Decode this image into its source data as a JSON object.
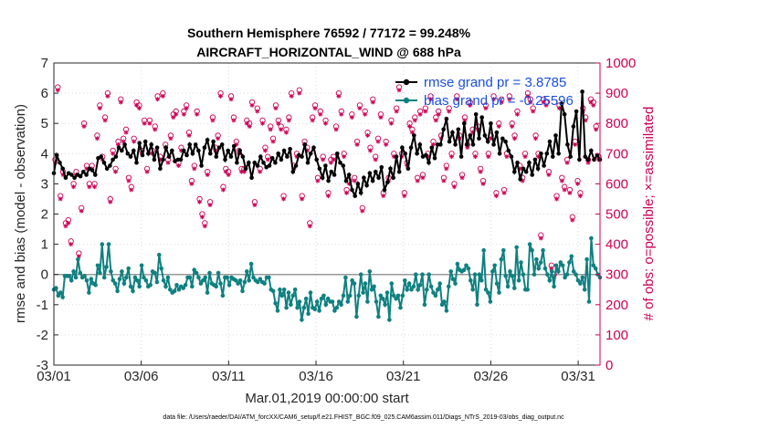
{
  "chart_data": {
    "type": "line",
    "title": "Southern Hemisphere 76592 / 77172 = 99.248%",
    "subtitle": "AIRCRAFT_HORIZONTAL_WIND @ 688 hPa",
    "xlabel": "Mar.01,2019 00:00:00 start",
    "ylabel": "rmse and bias (model - observation)",
    "y2label": "# of obs: o=possible; ×=assimilated",
    "footnote": "data file: /Users/raeder/DAI/ATM_forcXX/CAM6_setup/f.e21.FHIST_BGC.f09_025.CAM6assim.011/Diags_NTrS_2019-03/obs_diag_output.nc",
    "xlim": [
      0,
      31.25
    ],
    "ylim": [
      -3,
      7
    ],
    "y2lim": [
      0,
      1000
    ],
    "x_tick_labels": [
      "03/01",
      "03/06",
      "03/11",
      "03/16",
      "03/21",
      "03/26",
      "03/31"
    ],
    "x_tick_values": [
      0,
      5,
      10,
      15,
      20,
      25,
      30
    ],
    "y_ticks": [
      "-3",
      "-2",
      "-1",
      "0",
      "1",
      "2",
      "3",
      "4",
      "5",
      "6",
      "7"
    ],
    "y2_ticks": [
      "0",
      "100",
      "200",
      "300",
      "400",
      "500",
      "600",
      "700",
      "800",
      "900",
      "1000"
    ],
    "colors": {
      "rmse": "#000000",
      "bias": "#108080",
      "obs": "#cc0055",
      "legend_text": "#1a4fe0",
      "zero": "#999999"
    },
    "series": [
      {
        "name": "rmse",
        "legend_label": "rmse grand pr = 3.8785",
        "values": [
          3.35,
          3.95,
          3.7,
          3.5,
          3.2,
          3.35,
          3.3,
          3.2,
          3.3,
          3.25,
          3.4,
          3.3,
          3.5,
          3.45,
          3.3,
          3.85,
          3.9,
          3.7,
          3.5,
          3.6,
          3.8,
          3.9,
          4.2,
          4.1,
          4.3,
          4.0,
          3.9,
          4.1,
          3.7,
          4.35,
          3.95,
          4.4,
          4.0,
          4.3,
          3.8,
          4.2,
          3.5,
          3.8,
          4.2,
          3.9,
          4.1,
          3.75,
          3.8,
          3.8,
          4.1,
          3.95,
          4.3,
          4.0,
          4.3,
          4.1,
          3.6,
          4.2,
          4.45,
          4.0,
          4.4,
          3.9,
          4.2,
          4.3,
          3.8,
          4.1,
          3.9,
          4.25,
          3.7,
          4.1,
          3.9,
          3.5,
          3.7,
          3.2,
          3.7,
          3.6,
          3.9,
          3.7,
          3.55,
          3.6,
          3.85,
          3.7,
          4.0,
          3.8,
          4.1,
          3.9,
          4.15,
          3.4,
          3.6,
          3.95,
          3.9,
          4.3,
          3.7,
          4.0,
          4.2,
          3.8,
          3.5,
          3.2,
          3.6,
          3.1,
          3.4,
          3.3,
          4.0,
          3.7,
          3.6,
          3.1,
          3.3,
          2.8,
          2.6,
          3.0,
          2.7,
          3.2,
          2.95,
          3.35,
          3.1,
          3.4,
          3.2,
          3.55,
          2.8,
          3.05,
          3.5,
          3.2,
          3.9,
          3.4,
          4.2,
          4.0,
          3.5,
          4.2,
          4.6,
          4.0,
          4.3,
          3.9,
          3.95,
          3.7,
          4.2,
          3.85,
          4.3,
          4.3,
          4.8,
          5.15,
          4.4,
          4.7,
          4.3,
          4.8,
          3.9,
          5.0,
          4.3,
          4.6,
          4.3,
          5.3,
          4.5,
          5.2,
          4.6,
          4.4,
          5.0,
          4.3,
          4.7,
          4.0,
          4.5,
          4.4,
          4.1,
          3.9,
          3.4,
          3.7,
          3.15,
          3.5,
          3.4,
          3.7,
          3.3,
          3.8,
          3.5,
          4.0,
          3.6,
          4.0,
          4.4,
          3.9,
          4.6,
          4.0,
          5.65,
          5.3,
          4.3,
          3.9,
          4.9,
          5.4,
          3.8,
          6.05,
          3.9,
          3.8,
          4.1,
          3.8,
          3.95,
          3.8
        ]
      },
      {
        "name": "bias",
        "legend_label": "bias grand pr = -0.25596",
        "values": [
          -0.5,
          -0.45,
          -0.7,
          -0.6,
          -0.75,
          -0.05,
          -0.05,
          -0.05,
          -0.2,
          0.1,
          -0.1,
          0.5,
          0.05,
          -0.1,
          -0.05,
          -0.2,
          -0.6,
          -0.15,
          -0.3,
          -0.35,
          0.3,
          0.05,
          1.0,
          -0.1,
          0.25,
          1.0,
          0.1,
          -0.2,
          -0.3,
          -0.55,
          -0.15,
          0.1,
          -0.3,
          -0.1,
          0.2,
          -0.4,
          -0.55,
          -0.1,
          -0.2,
          -0.4,
          0.3,
          -0.1,
          -0.2,
          -0.4,
          -0.35,
          0.1,
          0.05,
          -0.25,
          0.65,
          0.2,
          -0.2,
          -0.4,
          -0.1,
          -0.5,
          -0.6,
          -0.55,
          -0.35,
          -0.5,
          -0.4,
          -0.45,
          -0.35,
          -0.1,
          -0.1,
          -0.4,
          0.15,
          0.05,
          -0.1,
          -0.3,
          -0.2,
          -0.1,
          -0.6,
          0.05,
          -0.3,
          -0.35,
          -0.4,
          0.05,
          -0.3,
          -0.7,
          -0.1,
          -0.1,
          -0.35,
          -0.1,
          -0.15,
          -0.2,
          -0.3,
          -0.2,
          -0.55,
          -0.25,
          0.1,
          -0.2,
          0.35,
          -0.1,
          -0.2,
          -0.25,
          -0.15,
          -0.25,
          -0.3,
          -0.1,
          -0.1,
          -0.5,
          -0.55,
          -0.95,
          -1.2,
          -0.5,
          -0.7,
          -0.5,
          -1.1,
          -0.6,
          -1.0,
          -0.7,
          -0.5,
          -1.1,
          -0.9,
          -1.5,
          -1.1,
          -0.8,
          -1.3,
          -0.6,
          -1.1,
          -1.15,
          -0.9,
          -1.2,
          -0.8,
          -0.7,
          -1.0,
          -0.8,
          -0.9,
          -0.9,
          -1.2,
          -1.1,
          -0.9,
          -1.0,
          -0.7,
          -0.1,
          -0.9,
          -0.7,
          -0.2,
          -0.3,
          -1.4,
          -0.7,
          0.0,
          -0.6,
          -0.3,
          -0.9,
          0.1,
          -0.5,
          -0.4,
          -0.9,
          -1.4,
          -0.7,
          -0.8,
          -1.0,
          -0.6,
          -1.5,
          -0.3,
          -0.7,
          -0.8,
          -0.7,
          -1.1,
          -0.7,
          -0.2,
          -0.5,
          -0.3,
          -0.5,
          -0.4,
          0.0,
          -0.5,
          -0.35,
          0.0,
          -1.0,
          -0.5,
          0.0,
          -0.4,
          -0.6,
          -0.7,
          -0.5,
          -0.3,
          -1.0,
          -0.9,
          -1.2,
          -0.4,
          0.1,
          -0.15,
          -0.3,
          0.35,
          0.15,
          0.1,
          0.15,
          0.3,
          0.2,
          -0.2,
          -0.5,
          0.0,
          -1.0,
          0.0,
          -0.2,
          0.8,
          -0.5,
          -0.6,
          -0.9,
          0.1,
          0.3,
          -0.3,
          -0.6,
          0.5,
          0.8,
          -0.05,
          -0.4,
          0.1,
          -0.05,
          -0.45,
          0.9,
          -0.2,
          0.4,
          0.0,
          -0.5,
          -0.5,
          1.0,
          0.8,
          0.0,
          0.5,
          0.2,
          0.4,
          0.8,
          0.2,
          0.0,
          -0.2,
          0.1,
          -0.4,
          0.3,
          0.1,
          0.4,
          0.3,
          -0.1,
          0.0,
          0.4,
          0.6,
          0.1,
          0.0,
          -0.2,
          -0.3,
          -0.1,
          -0.5,
          0.5,
          -0.9,
          1.2,
          0.3,
          0.2,
          0.0,
          -0.1
        ]
      }
    ],
    "obs_possible": [
      680,
      920,
      560,
      640,
      470,
      480,
      410,
      600,
      640,
      370,
      520,
      800,
      660,
      600,
      660,
      600,
      760,
      860,
      690,
      820,
      900,
      550,
      710,
      650,
      740,
      880,
      750,
      780,
      620,
      590,
      750,
      870,
      860,
      710,
      810,
      650,
      810,
      710,
      790,
      890,
      690,
      900,
      730,
      680,
      760,
      830,
      840,
      670,
      720,
      840,
      860,
      770,
      610,
      660,
      840,
      550,
      500,
      470,
      640,
      540,
      820,
      720,
      760,
      900,
      590,
      650,
      640,
      890,
      820,
      740,
      710,
      650,
      650,
      810,
      800,
      870,
      540,
      850,
      650,
      810,
      720,
      690,
      790,
      750,
      860,
      810,
      790,
      560,
      780,
      820,
      900,
      660,
      700,
      910,
      560,
      740,
      720,
      470,
      820,
      860,
      620,
      840,
      690,
      810,
      570,
      680,
      690,
      790,
      900,
      840,
      700,
      580,
      610,
      830,
      620,
      740,
      860,
      520,
      840,
      770,
      720,
      880,
      690,
      750,
      830,
      570,
      740,
      620,
      810,
      700,
      850,
      920,
      700,
      570,
      670,
      800,
      780,
      820,
      620,
      840,
      630,
      850,
      700,
      890,
      740,
      820,
      840,
      760,
      620,
      660,
      850,
      700,
      600,
      890,
      760,
      630,
      820,
      730,
      870,
      780,
      700,
      790,
      650,
      610,
      860,
      700,
      760,
      890,
      570,
      800,
      880,
      580,
      700,
      890,
      800,
      760,
      840,
      660,
      620,
      700,
      900,
      880,
      850,
      760,
      700,
      430,
      880,
      870,
      640,
      330,
      300,
      560,
      860,
      620,
      590,
      680,
      580,
      490,
      740,
      610,
      570,
      850,
      820,
      680,
      880,
      870,
      790,
      690
    ],
    "obs_assimilated": [
      670,
      910,
      550,
      630,
      460,
      470,
      400,
      590,
      630,
      360,
      510,
      790,
      650,
      590,
      650,
      590,
      750,
      850,
      680,
      810,
      890,
      540,
      700,
      640,
      730,
      870,
      740,
      770,
      610,
      580,
      740,
      860,
      850,
      700,
      800,
      640,
      800,
      700,
      780,
      880,
      680,
      890,
      720,
      670,
      750,
      820,
      830,
      660,
      710,
      830,
      850,
      760,
      600,
      650,
      830,
      540,
      490,
      460,
      630,
      530,
      810,
      710,
      750,
      890,
      580,
      640,
      630,
      880,
      810,
      730,
      700,
      640,
      640,
      800,
      790,
      860,
      530,
      840,
      640,
      800,
      710,
      680,
      780,
      740,
      850,
      800,
      780,
      550,
      770,
      810,
      890,
      650,
      690,
      900,
      550,
      730,
      710,
      460,
      810,
      850,
      610,
      830,
      680,
      800,
      560,
      670,
      680,
      780,
      890,
      830,
      690,
      570,
      600,
      820,
      610,
      730,
      850,
      510,
      830,
      760,
      710,
      870,
      680,
      740,
      820,
      560,
      730,
      610,
      800,
      690,
      840,
      910,
      690,
      560,
      660,
      790,
      770,
      810,
      610,
      830,
      620,
      840,
      690,
      880,
      730,
      810,
      830,
      750,
      610,
      650,
      840,
      690,
      590,
      880,
      750,
      620,
      810,
      720,
      860,
      770,
      690,
      780,
      640,
      600,
      850,
      690,
      750,
      880,
      560,
      790,
      870,
      570,
      690,
      880,
      790,
      750,
      830,
      650,
      610,
      690,
      890,
      870,
      840,
      750,
      690,
      420,
      870,
      860,
      630,
      320,
      290,
      550,
      850,
      610,
      580,
      670,
      570,
      480,
      730,
      600,
      560,
      840,
      810,
      670,
      870,
      860,
      780,
      680
    ]
  }
}
